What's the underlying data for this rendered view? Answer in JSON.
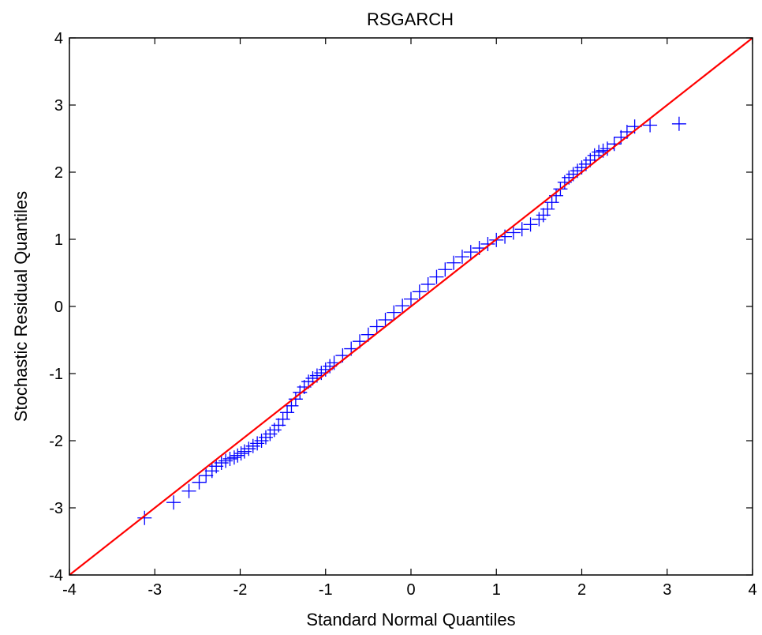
{
  "chart_data": {
    "type": "scatter",
    "title": "RSGARCH",
    "xlabel": "Standard Normal Quantiles",
    "ylabel": "Stochastic Residual Quantiles",
    "xlim": [
      -4,
      4
    ],
    "ylim": [
      -4,
      4
    ],
    "xticks": [
      -4,
      -3,
      -2,
      -1,
      0,
      1,
      2,
      3,
      4
    ],
    "yticks": [
      -4,
      -3,
      -2,
      -1,
      0,
      1,
      2,
      3,
      4
    ],
    "xtick_labels": [
      "-4",
      "-3",
      "-2",
      "-1",
      "0",
      "1",
      "2",
      "3",
      "4"
    ],
    "ytick_labels": [
      "-4",
      "-3",
      "-2",
      "-1",
      "0",
      "1",
      "2",
      "3",
      "4"
    ],
    "grid": false,
    "colors": {
      "points": "#0000ff",
      "reference_line": "#ff0000",
      "axes": "#000000"
    },
    "marker": "plus",
    "series": [
      {
        "x": [
          -3.12,
          -2.78,
          -2.6,
          -2.48,
          -2.4,
          -2.33,
          -2.28,
          -2.22,
          -2.17,
          -2.12,
          -2.07,
          -2.03,
          -1.99,
          -1.95,
          -1.9,
          -1.85,
          -1.8,
          -1.75,
          -1.7,
          -1.65,
          -1.6,
          -1.55,
          -1.5,
          -1.45,
          -1.4,
          -1.35,
          -1.3,
          -1.25,
          -1.2,
          -1.15,
          -1.1,
          -1.05,
          -1.0,
          -0.95,
          -0.9,
          -0.8,
          -0.7,
          -0.6,
          -0.5,
          -0.4,
          -0.3,
          -0.2,
          -0.1,
          0.0,
          0.1,
          0.2,
          0.3,
          0.4,
          0.5,
          0.6,
          0.7,
          0.8,
          0.9,
          1.0,
          1.1,
          1.2,
          1.3,
          1.4,
          1.5,
          1.55,
          1.6,
          1.65,
          1.7,
          1.75,
          1.8,
          1.85,
          1.9,
          1.95,
          2.0,
          2.05,
          2.1,
          2.15,
          2.2,
          2.25,
          2.3,
          2.38,
          2.46,
          2.53,
          2.62,
          2.8,
          3.14
        ],
        "y": [
          -3.15,
          -2.92,
          -2.75,
          -2.62,
          -2.52,
          -2.45,
          -2.38,
          -2.33,
          -2.3,
          -2.27,
          -2.25,
          -2.22,
          -2.19,
          -2.16,
          -2.12,
          -2.08,
          -2.04,
          -2.0,
          -1.95,
          -1.9,
          -1.84,
          -1.77,
          -1.68,
          -1.58,
          -1.48,
          -1.38,
          -1.28,
          -1.2,
          -1.12,
          -1.07,
          -1.03,
          -0.99,
          -0.94,
          -0.89,
          -0.84,
          -0.73,
          -0.63,
          -0.52,
          -0.42,
          -0.3,
          -0.2,
          -0.09,
          0.01,
          0.11,
          0.22,
          0.33,
          0.44,
          0.55,
          0.65,
          0.74,
          0.81,
          0.87,
          0.93,
          0.99,
          1.04,
          1.1,
          1.15,
          1.22,
          1.3,
          1.36,
          1.45,
          1.55,
          1.65,
          1.75,
          1.85,
          1.92,
          1.97,
          2.02,
          2.07,
          2.12,
          2.18,
          2.25,
          2.3,
          2.32,
          2.35,
          2.42,
          2.52,
          2.6,
          2.68,
          2.7,
          2.72
        ]
      }
    ],
    "reference_line": {
      "from": [
        -4,
        -4
      ],
      "to": [
        4,
        4
      ]
    }
  }
}
